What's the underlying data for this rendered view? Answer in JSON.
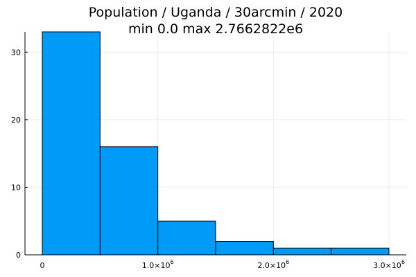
{
  "chart_data": {
    "type": "bar",
    "title": "Population / Uganda / 30arcmin / 2020",
    "subtitle": "min 0.0  max 2.7662822e6",
    "xlabel": "",
    "ylabel": "",
    "bins": [
      {
        "x0": 0,
        "x1": 500000,
        "count": 33
      },
      {
        "x0": 500000,
        "x1": 1000000,
        "count": 16
      },
      {
        "x0": 1000000,
        "x1": 1500000,
        "count": 5
      },
      {
        "x0": 1500000,
        "x1": 2000000,
        "count": 2
      },
      {
        "x0": 2000000,
        "x1": 2500000,
        "count": 1
      },
      {
        "x0": 2500000,
        "x1": 3000000,
        "count": 1
      }
    ],
    "xlim": [
      -150000,
      3150000
    ],
    "ylim": [
      0,
      33
    ],
    "x_ticks": [
      {
        "value": 0,
        "base": "0",
        "exp": ""
      },
      {
        "value": 1000000,
        "base": "1.0×10",
        "exp": "6"
      },
      {
        "value": 2000000,
        "base": "2.0×10",
        "exp": "6"
      },
      {
        "value": 3000000,
        "base": "3.0×10",
        "exp": "6"
      }
    ],
    "y_ticks": [
      {
        "value": 0,
        "label": "0"
      },
      {
        "value": 10,
        "label": "10"
      },
      {
        "value": 20,
        "label": "20"
      },
      {
        "value": 30,
        "label": "30"
      }
    ],
    "grid": true,
    "legend": "none",
    "bar_color": "#009AF9"
  }
}
